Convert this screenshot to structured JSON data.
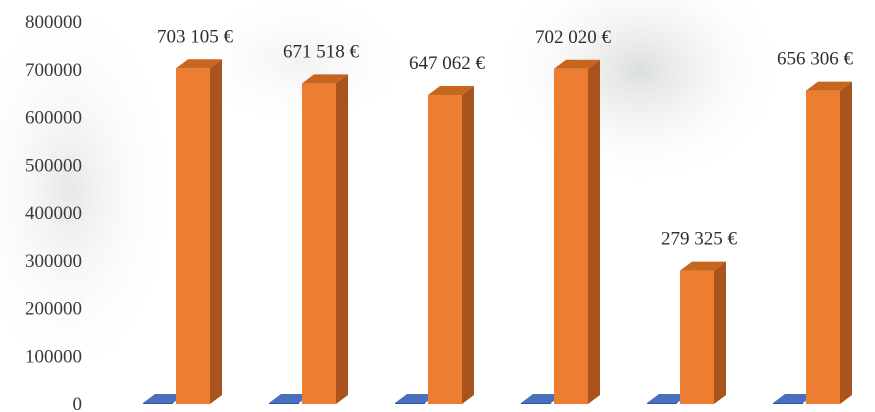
{
  "chart_data": {
    "type": "bar",
    "categories": [
      "",
      "",
      "",
      "",
      "",
      ""
    ],
    "series": [
      {
        "values": [
          0,
          0,
          0,
          0,
          0,
          0
        ],
        "color": "#2f55a4",
        "side_color": "#1f3c78",
        "top_color": "#4a6fbd"
      },
      {
        "values": [
          703105,
          671518,
          647062,
          702020,
          279325,
          656306
        ],
        "color": "#ed7d31",
        "side_color": "#a9541c",
        "top_color": "#c7661f"
      }
    ],
    "data_labels": [
      "703 105 €",
      "671 518 €",
      "647 062 €",
      "702 020 €",
      "279 325 €",
      "656 306 €"
    ],
    "y_ticks": [
      0,
      100000,
      200000,
      300000,
      400000,
      500000,
      600000,
      700000,
      800000
    ],
    "y_tick_labels": [
      "0",
      "100000",
      "200000",
      "300000",
      "400000",
      "500000",
      "600000",
      "700000",
      "800000"
    ],
    "ylim": [
      0,
      800000
    ],
    "title": "",
    "xlabel": "",
    "ylabel": "",
    "grid": false,
    "legend": "none",
    "style": "3d-column"
  }
}
